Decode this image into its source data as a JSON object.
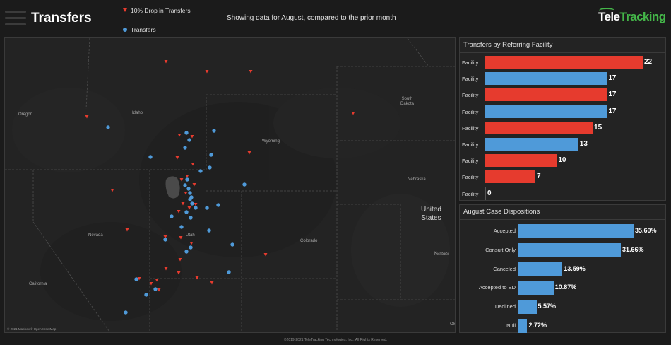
{
  "header": {
    "title": "Transfers",
    "subtitle": "Showing data for August, compared to the prior month",
    "legend": [
      {
        "label": "10% Drop in Transfers",
        "symbol": "red-triangle"
      },
      {
        "label": "Transfers",
        "symbol": "blue-dot"
      }
    ],
    "logo": {
      "part1": "Tele",
      "part2": "Tracking"
    }
  },
  "colors": {
    "drop": "#e63b2e",
    "transfer": "#4f9ad9",
    "background": "#1b1b1b",
    "panel": "#232323"
  },
  "map": {
    "labels": {
      "oregon": "Oregon",
      "idaho": "Idaho",
      "wyoming": "Wyoming",
      "south_dakota": "South\nDakota",
      "nebraska": "Nebraska",
      "nevada": "Nevada",
      "utah": "Utah",
      "colorado": "Colorado",
      "kansas": "Kansas",
      "california": "California",
      "united_states": "United\nStates",
      "ok": "Ok"
    },
    "attribution": "© 2021 Mapbox © OpenStreetMap"
  },
  "referring_facility": {
    "title": "Transfers by Referring Facility",
    "max": 22,
    "rows": [
      {
        "label": "Facility",
        "value": 22,
        "status": "drop"
      },
      {
        "label": "Facility",
        "value": 17,
        "status": "transfer"
      },
      {
        "label": "Facility",
        "value": 17,
        "status": "drop"
      },
      {
        "label": "Facility",
        "value": 17,
        "status": "transfer"
      },
      {
        "label": "Facility",
        "value": 15,
        "status": "drop"
      },
      {
        "label": "Facility",
        "value": 13,
        "status": "transfer"
      },
      {
        "label": "Facility",
        "value": 10,
        "status": "drop"
      },
      {
        "label": "Facility",
        "value": 7,
        "status": "drop"
      },
      {
        "label": "Facility",
        "value": 0,
        "status": "transfer"
      }
    ]
  },
  "case_dispositions": {
    "title": "August Case Dispositions",
    "max": 35.6,
    "rows": [
      {
        "label": "Accepted",
        "value": 35.6,
        "display": "35.60%"
      },
      {
        "label": "Consult Only",
        "value": 31.66,
        "display": "31.66%"
      },
      {
        "label": "Canceled",
        "value": 13.59,
        "display": "13.59%"
      },
      {
        "label": "Accepted to ED",
        "value": 10.87,
        "display": "10.87%"
      },
      {
        "label": "Declined",
        "value": 5.57,
        "display": "5.57%"
      },
      {
        "label": "Null",
        "value": 2.72,
        "display": "2.72%"
      }
    ]
  },
  "footer": "©2019-2021 TeleTracking Technologies, Inc.. All Rights Reserved."
}
